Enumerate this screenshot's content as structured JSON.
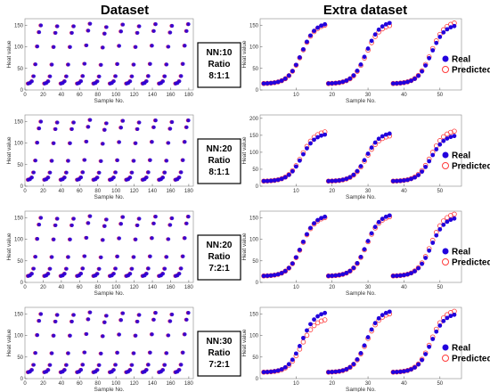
{
  "titles": {
    "left": "Dataset",
    "right": "Extra dataset"
  },
  "colors": {
    "real": "#2200dd",
    "predicted_fill": "#cc2266",
    "predicted_ring": "#ff3b3b"
  },
  "legend": {
    "real": "Real",
    "predicted": "Predicted"
  },
  "chart_data": [
    {
      "type": "scatter",
      "panel": "dataset",
      "row": 1,
      "xlabel": "Sample No.",
      "ylabel": "Heat value",
      "xlim": [
        0,
        185
      ],
      "ylim": [
        0,
        165
      ],
      "xticks": [
        0,
        20,
        40,
        60,
        80,
        100,
        120,
        140,
        160,
        180
      ],
      "yticks": [
        0,
        50,
        100,
        150
      ],
      "info": [
        "NN:10",
        "Ratio",
        "8:1:1"
      ],
      "series": [
        {
          "name": "Real",
          "curves": [
            [
              3,
              18,
              153
            ],
            [
              21,
              36,
              151
            ],
            [
              39,
              54,
              151
            ],
            [
              57,
              72,
              157
            ],
            [
              75,
              90,
              149
            ],
            [
              93,
              108,
              155
            ],
            [
              111,
              126,
              151
            ],
            [
              129,
              144,
              156
            ],
            [
              147,
              162,
              152
            ],
            [
              165,
              180,
              156
            ]
          ]
        },
        {
          "name": "Predicted",
          "curves": [
            [
              3,
              18,
              153
            ],
            [
              21,
              36,
              151
            ],
            [
              39,
              54,
              151
            ],
            [
              57,
              72,
              157
            ],
            [
              75,
              90,
              149
            ],
            [
              93,
              108,
              155
            ],
            [
              111,
              126,
              151
            ],
            [
              129,
              144,
              156
            ],
            [
              147,
              162,
              152
            ],
            [
              165,
              180,
              156
            ]
          ]
        }
      ]
    },
    {
      "type": "scatter",
      "panel": "dataset",
      "row": 2,
      "xlabel": "Sample No.",
      "ylabel": "Heat value",
      "xlim": [
        0,
        185
      ],
      "ylim": [
        0,
        165
      ],
      "xticks": [
        0,
        20,
        40,
        60,
        80,
        100,
        120,
        140,
        160,
        180
      ],
      "yticks": [
        0,
        50,
        100,
        150
      ],
      "info": [
        "NN:20",
        "Ratio",
        "8:1:1"
      ],
      "series": [
        {
          "name": "Real",
          "curves": [
            [
              3,
              18,
              153
            ],
            [
              21,
              36,
              151
            ],
            [
              39,
              54,
              151
            ],
            [
              57,
              72,
              157
            ],
            [
              75,
              90,
              149
            ],
            [
              93,
              108,
              155
            ],
            [
              111,
              126,
              151
            ],
            [
              129,
              144,
              156
            ],
            [
              147,
              162,
              152
            ],
            [
              165,
              180,
              156
            ]
          ]
        },
        {
          "name": "Predicted",
          "curves": [
            [
              3,
              18,
              153
            ],
            [
              21,
              36,
              151
            ],
            [
              39,
              54,
              151
            ],
            [
              57,
              72,
              157
            ],
            [
              75,
              90,
              149
            ],
            [
              93,
              108,
              155
            ],
            [
              111,
              126,
              151
            ],
            [
              129,
              144,
              156
            ],
            [
              147,
              162,
              152
            ],
            [
              165,
              180,
              156
            ]
          ]
        }
      ]
    },
    {
      "type": "scatter",
      "panel": "dataset",
      "row": 3,
      "xlabel": "Sample No.",
      "ylabel": "Heat value",
      "xlim": [
        0,
        185
      ],
      "ylim": [
        0,
        165
      ],
      "xticks": [
        0,
        20,
        40,
        60,
        80,
        100,
        120,
        140,
        160,
        180
      ],
      "yticks": [
        0,
        50,
        100,
        150
      ],
      "info": [
        "NN:20",
        "Ratio",
        "7:2:1"
      ],
      "series": [
        {
          "name": "Real",
          "curves": [
            [
              3,
              18,
              153
            ],
            [
              21,
              36,
              151
            ],
            [
              39,
              54,
              151
            ],
            [
              57,
              72,
              157
            ],
            [
              75,
              90,
              149
            ],
            [
              93,
              108,
              155
            ],
            [
              111,
              126,
              151
            ],
            [
              129,
              144,
              156
            ],
            [
              147,
              162,
              152
            ],
            [
              165,
              180,
              156
            ]
          ]
        },
        {
          "name": "Predicted",
          "curves": [
            [
              3,
              18,
              153
            ],
            [
              21,
              36,
              151
            ],
            [
              39,
              54,
              151
            ],
            [
              57,
              72,
              157
            ],
            [
              75,
              90,
              149
            ],
            [
              93,
              108,
              155
            ],
            [
              111,
              126,
              151
            ],
            [
              129,
              144,
              156
            ],
            [
              147,
              162,
              152
            ],
            [
              165,
              180,
              156
            ]
          ]
        }
      ]
    },
    {
      "type": "scatter",
      "panel": "dataset",
      "row": 4,
      "xlabel": "Sample No.",
      "ylabel": "Heat value",
      "xlim": [
        0,
        185
      ],
      "ylim": [
        0,
        165
      ],
      "xticks": [
        0,
        20,
        40,
        60,
        80,
        100,
        120,
        140,
        160,
        180
      ],
      "yticks": [
        0,
        50,
        100,
        150
      ],
      "info": [
        "NN:30",
        "Ratio",
        "7:2:1"
      ],
      "series": [
        {
          "name": "Real",
          "curves": [
            [
              3,
              18,
              153
            ],
            [
              21,
              36,
              151
            ],
            [
              39,
              54,
              151
            ],
            [
              57,
              72,
              157
            ],
            [
              75,
              90,
              149
            ],
            [
              93,
              108,
              155
            ],
            [
              111,
              126,
              151
            ],
            [
              129,
              144,
              156
            ],
            [
              147,
              162,
              152
            ],
            [
              165,
              180,
              156
            ]
          ]
        },
        {
          "name": "Predicted",
          "curves": [
            [
              3,
              18,
              153
            ],
            [
              21,
              36,
              151
            ],
            [
              39,
              54,
              151
            ],
            [
              57,
              72,
              157
            ],
            [
              75,
              90,
              149
            ],
            [
              93,
              108,
              155
            ],
            [
              111,
              126,
              151
            ],
            [
              129,
              144,
              156
            ],
            [
              147,
              162,
              152
            ],
            [
              165,
              180,
              156
            ]
          ]
        }
      ]
    },
    {
      "type": "scatter",
      "panel": "extra",
      "row": 1,
      "xlabel": "Sample No.",
      "ylabel": "Heat value",
      "xlim": [
        0,
        56
      ],
      "ylim": [
        0,
        165
      ],
      "xticks": [
        10,
        20,
        30,
        40,
        50
      ],
      "yticks": [
        0,
        50,
        100,
        150
      ],
      "series": [
        {
          "name": "Real",
          "curves": [
            [
              1,
              18,
              152
            ],
            [
              19,
              36,
              155
            ],
            [
              37,
              54,
              148
            ]
          ]
        },
        {
          "name": "Predicted",
          "curves": [
            [
              1,
              18,
              150
            ],
            [
              19,
              36,
              149
            ],
            [
              37,
              54,
              155
            ]
          ]
        }
      ]
    },
    {
      "type": "scatter",
      "panel": "extra",
      "row": 2,
      "xlabel": "Sample No.",
      "ylabel": "Heat value",
      "xlim": [
        0,
        56
      ],
      "ylim": [
        0,
        210
      ],
      "xticks": [
        10,
        20,
        30,
        40,
        50
      ],
      "yticks": [
        0,
        50,
        100,
        150,
        200
      ],
      "series": [
        {
          "name": "Real",
          "curves": [
            [
              1,
              18,
              152
            ],
            [
              19,
              36,
              155
            ],
            [
              37,
              54,
              148
            ]
          ]
        },
        {
          "name": "Predicted",
          "curves": [
            [
              1,
              18,
              160
            ],
            [
              19,
              36,
              148
            ],
            [
              37,
              54,
              162
            ]
          ]
        }
      ]
    },
    {
      "type": "scatter",
      "panel": "extra",
      "row": 3,
      "xlabel": "Sample No.",
      "ylabel": "Heat value",
      "xlim": [
        0,
        56
      ],
      "ylim": [
        0,
        165
      ],
      "xticks": [
        10,
        20,
        30,
        40,
        50
      ],
      "yticks": [
        0,
        50,
        100,
        150
      ],
      "series": [
        {
          "name": "Real",
          "curves": [
            [
              1,
              18,
              152
            ],
            [
              19,
              36,
              155
            ],
            [
              37,
              54,
              148
            ]
          ]
        },
        {
          "name": "Predicted",
          "curves": [
            [
              1,
              18,
              150
            ],
            [
              19,
              36,
              152
            ],
            [
              37,
              54,
              158
            ]
          ]
        }
      ]
    },
    {
      "type": "scatter",
      "panel": "extra",
      "row": 4,
      "xlabel": "Sample No.",
      "ylabel": "Heat value",
      "xlim": [
        0,
        56
      ],
      "ylim": [
        0,
        165
      ],
      "xticks": [
        10,
        20,
        30,
        40,
        50
      ],
      "yticks": [
        0,
        50,
        100,
        150
      ],
      "series": [
        {
          "name": "Real",
          "curves": [
            [
              1,
              18,
              152
            ],
            [
              19,
              36,
              155
            ],
            [
              37,
              54,
              148
            ]
          ]
        },
        {
          "name": "Predicted",
          "curves": [
            [
              1,
              18,
              136
            ],
            [
              19,
              36,
              150
            ],
            [
              37,
              54,
              156
            ]
          ]
        }
      ]
    }
  ]
}
